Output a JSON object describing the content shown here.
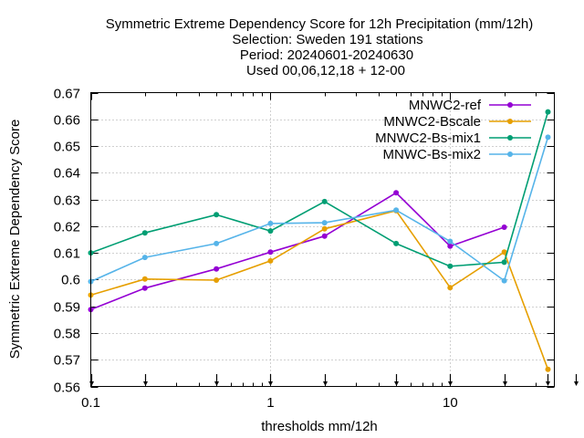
{
  "chart_data": {
    "type": "line",
    "title_lines": [
      "Symmetric Extreme Dependency Score  for 12h Precipitation (mm/12h)",
      "Selection: Sweden    191 stations",
      "Period: 20240601-20240630",
      "Used 00,06,12,18 + 12-00"
    ],
    "xlabel": "thresholds mm/12h",
    "ylabel": "Symmetric Extreme Dependency Score",
    "x_scale": "log",
    "xlim": [
      0.1,
      38
    ],
    "ylim": [
      0.56,
      0.67
    ],
    "grid": true,
    "legend_position": "top-right",
    "x_ticks": [
      {
        "value": 0.1,
        "label": "0.1"
      },
      {
        "value": 1,
        "label": "1"
      },
      {
        "value": 10,
        "label": "10"
      }
    ],
    "y_ticks": [
      {
        "value": 0.56,
        "label": "0.56"
      },
      {
        "value": 0.57,
        "label": "0.57"
      },
      {
        "value": 0.58,
        "label": "0.58"
      },
      {
        "value": 0.59,
        "label": "0.59"
      },
      {
        "value": 0.6,
        "label": "0.6"
      },
      {
        "value": 0.61,
        "label": "0.61"
      },
      {
        "value": 0.62,
        "label": "0.62"
      },
      {
        "value": 0.63,
        "label": "0.63"
      },
      {
        "value": 0.64,
        "label": "0.64"
      },
      {
        "value": 0.65,
        "label": "0.65"
      },
      {
        "value": 0.66,
        "label": "0.66"
      },
      {
        "value": 0.67,
        "label": "0.67"
      }
    ],
    "bottom_arrow_x": [
      0.1,
      0.2,
      0.5,
      1,
      2,
      5,
      10,
      20,
      35,
      50
    ],
    "series": [
      {
        "name": "MNWC2-ref",
        "color": "#9400d3",
        "x": [
          0.1,
          0.2,
          0.5,
          1,
          2,
          5,
          10,
          20
        ],
        "y": [
          0.5888,
          0.5968,
          0.604,
          0.6103,
          0.6163,
          0.6325,
          0.6125,
          0.6196
        ]
      },
      {
        "name": "MNWC2-Bscale",
        "color": "#e69f00",
        "x": [
          0.1,
          0.2,
          0.5,
          1,
          2,
          5,
          10,
          20,
          35
        ],
        "y": [
          0.5942,
          0.6002,
          0.5998,
          0.607,
          0.619,
          0.6258,
          0.597,
          0.6103,
          0.5664
        ]
      },
      {
        "name": "MNWC2-Bs-mix1",
        "color": "#009e73",
        "x": [
          0.1,
          0.2,
          0.5,
          1,
          2,
          5,
          10,
          20,
          35
        ],
        "y": [
          0.61,
          0.6175,
          0.6243,
          0.6182,
          0.6292,
          0.6135,
          0.605,
          0.6065,
          0.6628
        ]
      },
      {
        "name": "MNWC-Bs-mix2",
        "color": "#56b4e9",
        "x": [
          0.1,
          0.2,
          0.5,
          1,
          2,
          5,
          10,
          20,
          35
        ],
        "y": [
          0.5993,
          0.6083,
          0.6135,
          0.621,
          0.6213,
          0.626,
          0.6143,
          0.5996,
          0.6533
        ]
      }
    ]
  }
}
